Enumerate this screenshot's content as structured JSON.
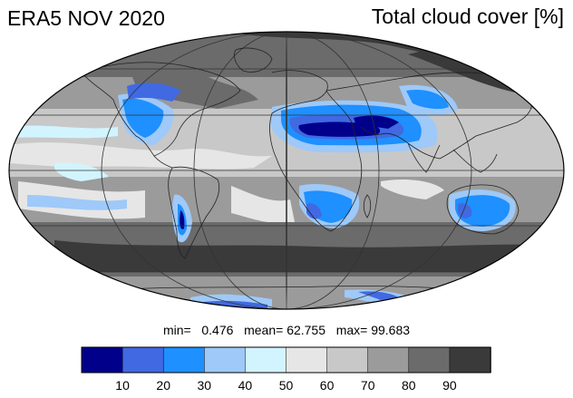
{
  "header": {
    "left_title": "ERA5 NOV 2020",
    "right_title": "Total cloud cover [%]"
  },
  "stats": {
    "min_label": "min=",
    "min_value": "0.476",
    "mean_label": "mean=",
    "mean_value": "62.755",
    "max_label": "max=",
    "max_value": "99.683"
  },
  "map": {
    "projection": "mollweide",
    "background_color": "#9b9b9b",
    "graticule_color": "#333333",
    "coastline_color": "#222222"
  },
  "colorbar": {
    "bins": [
      {
        "color": "#00008b"
      },
      {
        "color": "#4169e1"
      },
      {
        "color": "#1e90ff"
      },
      {
        "color": "#9ec9f8"
      },
      {
        "color": "#d2f4ff"
      },
      {
        "color": "#e6e6e6"
      },
      {
        "color": "#c8c8c8"
      },
      {
        "color": "#9b9b9b"
      },
      {
        "color": "#6b6b6b"
      },
      {
        "color": "#3a3a3a"
      }
    ],
    "tick_labels": [
      "10",
      "20",
      "30",
      "40",
      "50",
      "60",
      "70",
      "80",
      "90"
    ]
  }
}
